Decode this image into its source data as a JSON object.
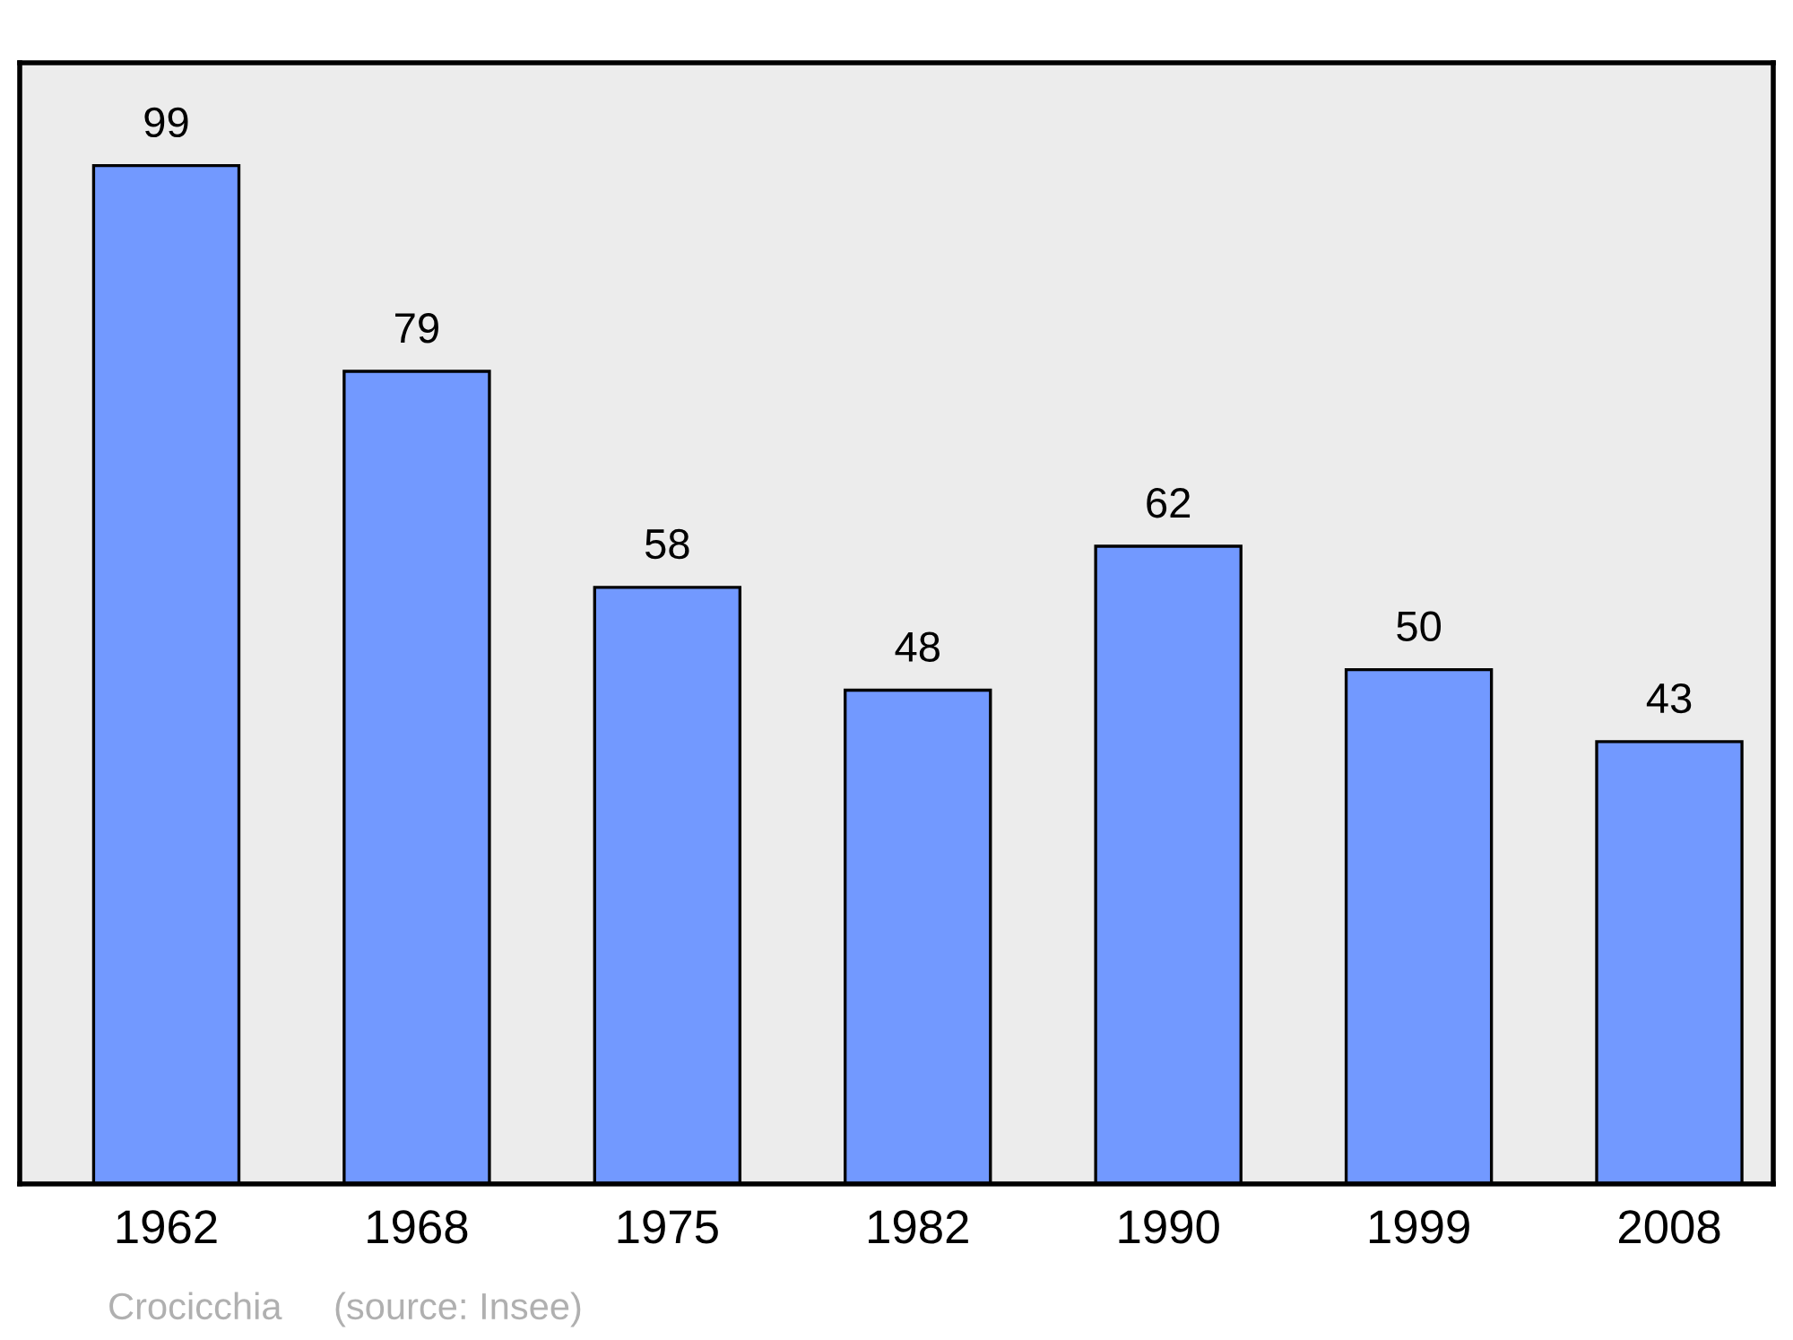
{
  "chart_data": {
    "type": "bar",
    "categories": [
      "1962",
      "1968",
      "1975",
      "1982",
      "1990",
      "1999",
      "2008"
    ],
    "values": [
      99,
      79,
      58,
      48,
      62,
      50,
      43
    ],
    "color": "#7299ff",
    "ylim": [
      0,
      109
    ],
    "data_labels": true,
    "grid": false,
    "legend": false,
    "annotations": [
      "Crocicchia",
      "(source: Insee)"
    ]
  }
}
